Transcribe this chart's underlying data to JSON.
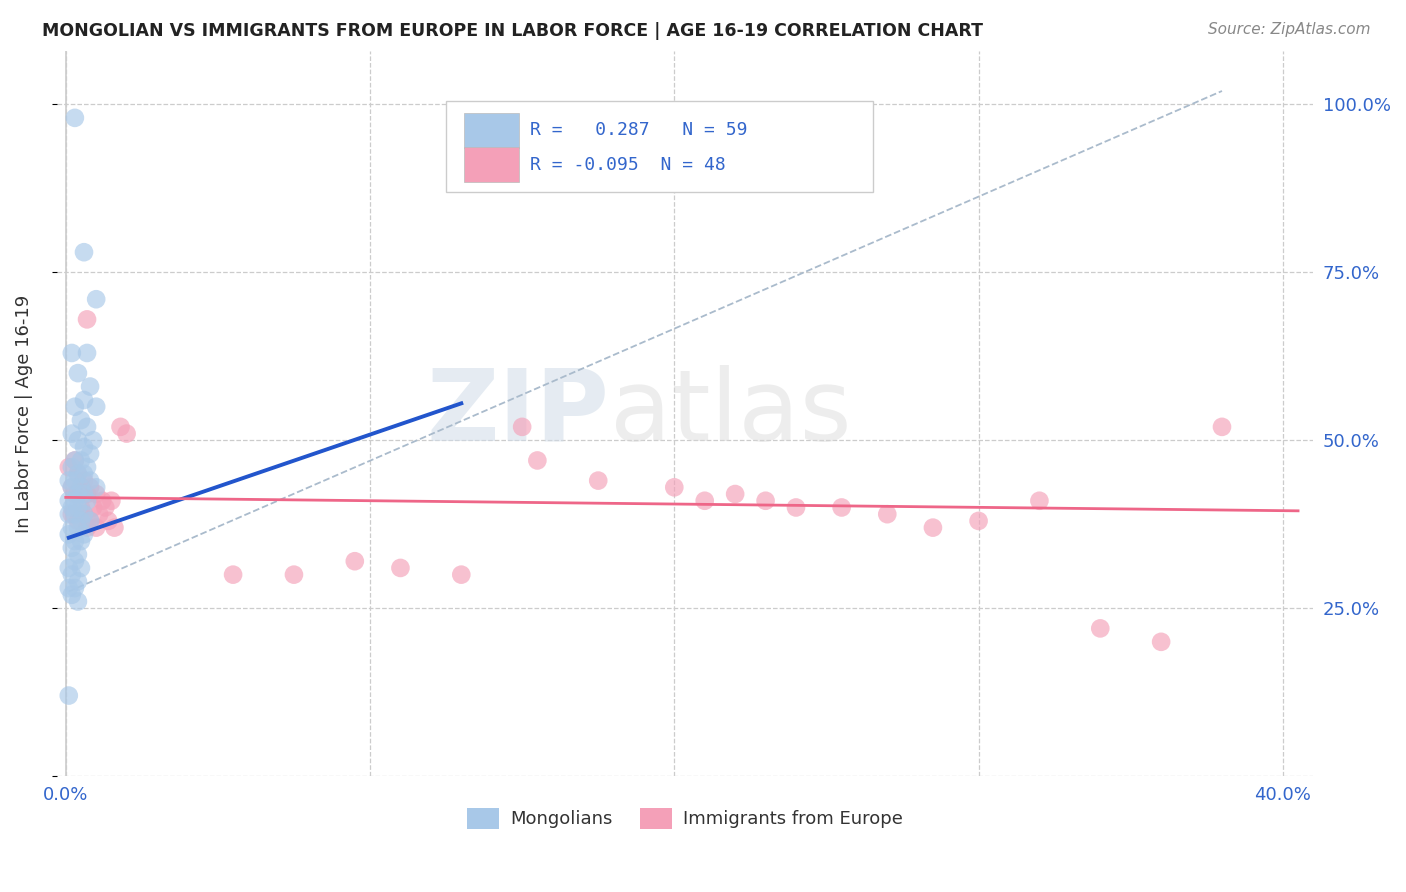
{
  "title": "MONGOLIAN VS IMMIGRANTS FROM EUROPE IN LABOR FORCE | AGE 16-19 CORRELATION CHART",
  "source": "Source: ZipAtlas.com",
  "ylabel": "In Labor Force | Age 16-19",
  "xlim": [
    -0.003,
    0.41
  ],
  "ylim": [
    0.0,
    1.08
  ],
  "y_ticks": [
    0.0,
    0.25,
    0.5,
    0.75,
    1.0
  ],
  "y_tick_labels_right": [
    "",
    "25.0%",
    "50.0%",
    "75.0%",
    "100.0%"
  ],
  "x_ticks": [
    0.0,
    0.05,
    0.1,
    0.15,
    0.2,
    0.25,
    0.3,
    0.35,
    0.4
  ],
  "x_tick_labels": [
    "0.0%",
    "",
    "",
    "",
    "",
    "",
    "",
    "",
    "40.0%"
  ],
  "legend_r_blue": "0.287",
  "legend_n_blue": "59",
  "legend_r_pink": "-0.095",
  "legend_n_pink": "48",
  "blue_color": "#a8c8e8",
  "pink_color": "#f4a0b8",
  "blue_line_color": "#2255cc",
  "pink_line_color": "#ee6688",
  "dash_line_color": "#aabbcc",
  "blue_scatter": [
    [
      0.003,
      0.98
    ],
    [
      0.006,
      0.78
    ],
    [
      0.01,
      0.71
    ],
    [
      0.002,
      0.63
    ],
    [
      0.007,
      0.63
    ],
    [
      0.004,
      0.6
    ],
    [
      0.008,
      0.58
    ],
    [
      0.006,
      0.56
    ],
    [
      0.003,
      0.55
    ],
    [
      0.01,
      0.55
    ],
    [
      0.005,
      0.53
    ],
    [
      0.007,
      0.52
    ],
    [
      0.002,
      0.51
    ],
    [
      0.004,
      0.5
    ],
    [
      0.009,
      0.5
    ],
    [
      0.006,
      0.49
    ],
    [
      0.008,
      0.48
    ],
    [
      0.003,
      0.47
    ],
    [
      0.005,
      0.47
    ],
    [
      0.007,
      0.46
    ],
    [
      0.002,
      0.46
    ],
    [
      0.004,
      0.45
    ],
    [
      0.006,
      0.45
    ],
    [
      0.001,
      0.44
    ],
    [
      0.003,
      0.44
    ],
    [
      0.008,
      0.44
    ],
    [
      0.005,
      0.43
    ],
    [
      0.01,
      0.43
    ],
    [
      0.002,
      0.43
    ],
    [
      0.004,
      0.42
    ],
    [
      0.006,
      0.42
    ],
    [
      0.001,
      0.41
    ],
    [
      0.003,
      0.41
    ],
    [
      0.007,
      0.41
    ],
    [
      0.002,
      0.4
    ],
    [
      0.004,
      0.4
    ],
    [
      0.006,
      0.39
    ],
    [
      0.001,
      0.39
    ],
    [
      0.003,
      0.39
    ],
    [
      0.005,
      0.38
    ],
    [
      0.008,
      0.38
    ],
    [
      0.002,
      0.37
    ],
    [
      0.004,
      0.37
    ],
    [
      0.006,
      0.36
    ],
    [
      0.001,
      0.36
    ],
    [
      0.003,
      0.35
    ],
    [
      0.005,
      0.35
    ],
    [
      0.002,
      0.34
    ],
    [
      0.004,
      0.33
    ],
    [
      0.003,
      0.32
    ],
    [
      0.001,
      0.31
    ],
    [
      0.005,
      0.31
    ],
    [
      0.002,
      0.3
    ],
    [
      0.004,
      0.29
    ],
    [
      0.001,
      0.28
    ],
    [
      0.003,
      0.28
    ],
    [
      0.002,
      0.27
    ],
    [
      0.004,
      0.26
    ],
    [
      0.001,
      0.12
    ]
  ],
  "pink_scatter": [
    [
      0.003,
      0.47
    ],
    [
      0.001,
      0.46
    ],
    [
      0.004,
      0.45
    ],
    [
      0.006,
      0.44
    ],
    [
      0.002,
      0.43
    ],
    [
      0.005,
      0.43
    ],
    [
      0.008,
      0.43
    ],
    [
      0.003,
      0.42
    ],
    [
      0.007,
      0.42
    ],
    [
      0.01,
      0.42
    ],
    [
      0.012,
      0.41
    ],
    [
      0.015,
      0.41
    ],
    [
      0.005,
      0.4
    ],
    [
      0.009,
      0.4
    ],
    [
      0.013,
      0.4
    ],
    [
      0.002,
      0.39
    ],
    [
      0.006,
      0.39
    ],
    [
      0.011,
      0.39
    ],
    [
      0.004,
      0.38
    ],
    [
      0.008,
      0.38
    ],
    [
      0.014,
      0.38
    ],
    [
      0.01,
      0.37
    ],
    [
      0.016,
      0.37
    ],
    [
      0.007,
      0.37
    ],
    [
      0.007,
      0.68
    ],
    [
      0.018,
      0.52
    ],
    [
      0.02,
      0.51
    ],
    [
      0.15,
      0.52
    ],
    [
      0.155,
      0.47
    ],
    [
      0.175,
      0.44
    ],
    [
      0.2,
      0.43
    ],
    [
      0.21,
      0.41
    ],
    [
      0.22,
      0.42
    ],
    [
      0.23,
      0.41
    ],
    [
      0.24,
      0.4
    ],
    [
      0.255,
      0.4
    ],
    [
      0.27,
      0.39
    ],
    [
      0.285,
      0.37
    ],
    [
      0.3,
      0.38
    ],
    [
      0.32,
      0.41
    ],
    [
      0.34,
      0.22
    ],
    [
      0.36,
      0.2
    ],
    [
      0.38,
      0.52
    ],
    [
      0.055,
      0.3
    ],
    [
      0.075,
      0.3
    ],
    [
      0.095,
      0.32
    ],
    [
      0.11,
      0.31
    ],
    [
      0.13,
      0.3
    ]
  ],
  "blue_trend_x": [
    0.001,
    0.13
  ],
  "blue_trend_y": [
    0.355,
    0.555
  ],
  "pink_trend_x": [
    0.0,
    0.405
  ],
  "pink_trend_y": [
    0.415,
    0.395
  ],
  "dash_line_x": [
    0.001,
    0.38
  ],
  "dash_line_y": [
    0.275,
    1.02
  ]
}
